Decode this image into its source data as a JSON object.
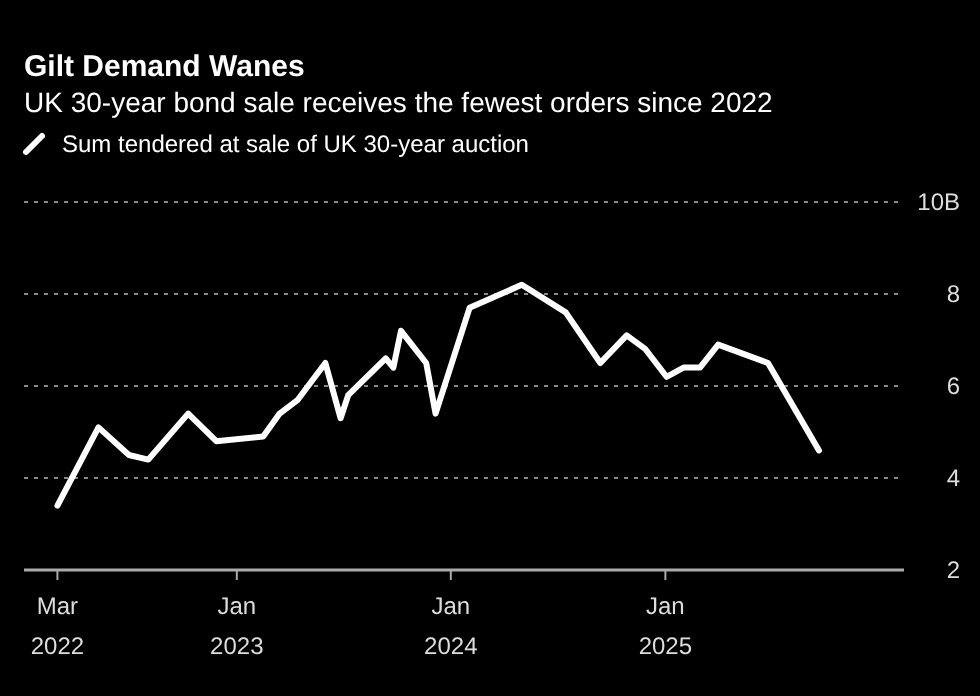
{
  "chart_data": {
    "type": "line",
    "title": "Gilt Demand Wanes",
    "subtitle": "UK 30-year bond sale receives the fewest orders since 2022",
    "x": [
      "2022-03-01",
      "2022-05-10",
      "2022-07-01",
      "2022-08-03",
      "2022-10-10",
      "2022-11-27",
      "2023-02-15",
      "2023-03-15",
      "2023-04-15",
      "2023-06-01",
      "2023-06-27",
      "2023-07-10",
      "2023-09-12",
      "2023-09-25",
      "2023-10-08",
      "2023-11-20",
      "2023-12-06",
      "2024-02-02",
      "2024-05-01",
      "2024-07-15",
      "2024-09-12",
      "2024-10-27",
      "2024-11-28",
      "2025-01-03",
      "2025-02-01",
      "2025-03-01",
      "2025-04-01",
      "2025-06-25",
      "2025-09-20"
    ],
    "series": [
      {
        "name": "Sum tendered at sale of UK 30-year auction",
        "color": "#ffffff",
        "values": [
          3.4,
          5.1,
          4.5,
          4.4,
          5.4,
          4.8,
          4.9,
          5.4,
          5.7,
          6.5,
          5.3,
          5.8,
          6.6,
          6.4,
          7.2,
          6.5,
          5.4,
          7.7,
          8.2,
          7.6,
          6.5,
          7.1,
          6.8,
          6.2,
          6.4,
          6.4,
          6.9,
          6.5,
          4.6
        ]
      }
    ],
    "xlim": [
      "2022-01-03",
      "2026-02-12"
    ],
    "xticks": [
      {
        "value": "2022-03-01",
        "label": "Mar 2022"
      },
      {
        "value": "2023-01-01",
        "label": "Jan 2023"
      },
      {
        "value": "2024-01-01",
        "label": "Jan 2024"
      },
      {
        "value": "2025-01-01",
        "label": "Jan 2025"
      }
    ],
    "ylim": [
      2,
      10
    ],
    "yticks": [
      2,
      4,
      6,
      8,
      {
        "value": 10,
        "label": "10B"
      }
    ],
    "grid": "y",
    "legend": "top left",
    "line_style": "solid",
    "marker": "none"
  }
}
